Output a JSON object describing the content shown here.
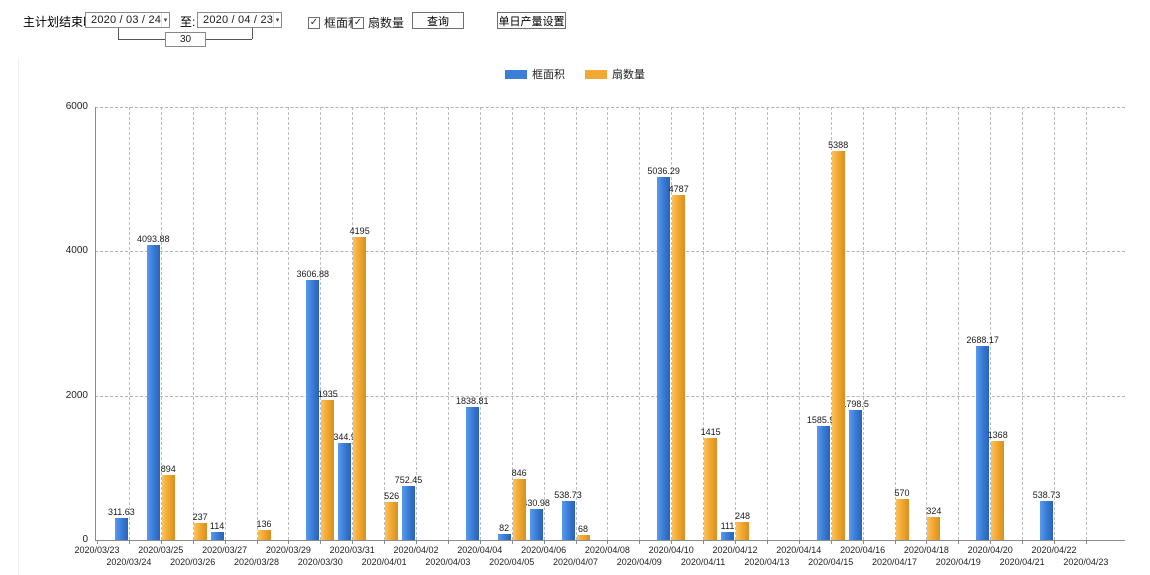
{
  "toolbar": {
    "date_range_label": "主计划结束时间:",
    "date_from": "2020 / 03 / 24",
    "to_label": "至:",
    "date_to": "2020 / 04 / 23",
    "days_between": "30",
    "checkboxes": [
      {
        "label": "框面积",
        "checked": true
      },
      {
        "label": "扇数量",
        "checked": true
      }
    ],
    "query_button": "查询",
    "daily_output_button": "单日产量设置"
  },
  "icons": {
    "dropdown_arrow": "▾",
    "checkmark": "✓"
  },
  "chart_data": {
    "type": "bar",
    "title": "",
    "xlabel": "",
    "ylabel": "",
    "ylim": [
      0,
      6000
    ],
    "yticks": [
      0,
      2000,
      4000,
      6000
    ],
    "grid": true,
    "legend_position": "top",
    "categories": [
      "2020/03/23",
      "2020/03/24",
      "2020/03/25",
      "2020/03/26",
      "2020/03/27",
      "2020/03/28",
      "2020/03/29",
      "2020/03/30",
      "2020/03/31",
      "2020/04/01",
      "2020/04/02",
      "2020/04/03",
      "2020/04/04",
      "2020/04/05",
      "2020/04/06",
      "2020/04/07",
      "2020/04/08",
      "2020/04/09",
      "2020/04/10",
      "2020/04/11",
      "2020/04/12",
      "2020/04/13",
      "2020/04/14",
      "2020/04/15",
      "2020/04/16",
      "2020/04/17",
      "2020/04/18",
      "2020/04/19",
      "2020/04/20",
      "2020/04/21",
      "2020/04/22",
      "2020/04/23"
    ],
    "series": [
      {
        "name": "框面积",
        "color": "#3b7fd9",
        "values": [
          null,
          311.63,
          4093.88,
          null,
          114,
          null,
          null,
          3606.88,
          1344.95,
          null,
          752.45,
          null,
          1838.81,
          82,
          430.98,
          538.73,
          null,
          null,
          5036.29,
          null,
          111,
          null,
          null,
          1585.96,
          1798.5,
          null,
          null,
          null,
          2688.17,
          null,
          538.73,
          null
        ]
      },
      {
        "name": "扇数量",
        "color": "#f2a833",
        "values": [
          null,
          null,
          894,
          237,
          null,
          136,
          null,
          1935,
          4195,
          526,
          null,
          null,
          null,
          846,
          null,
          68,
          null,
          null,
          4787,
          1415,
          248,
          null,
          null,
          5388,
          null,
          570,
          324,
          null,
          1368,
          null,
          null,
          null
        ]
      }
    ]
  }
}
